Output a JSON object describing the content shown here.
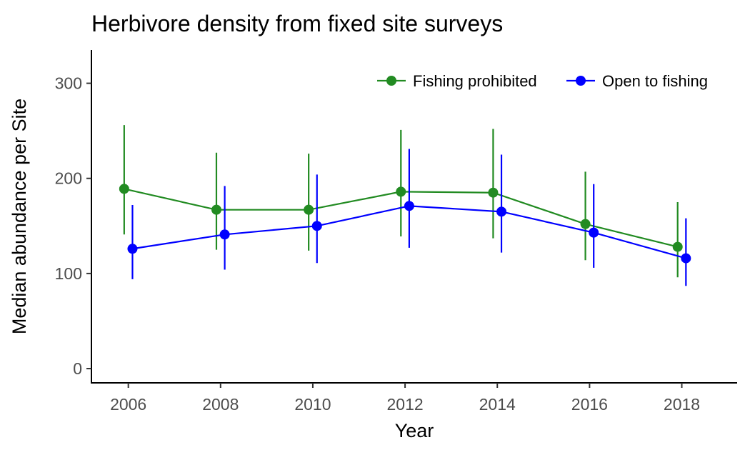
{
  "chart_data": {
    "type": "line",
    "title": "Herbivore density from fixed site surveys",
    "xlabel": "Year",
    "ylabel": "Median abundance per Site",
    "x": [
      2006,
      2008,
      2010,
      2012,
      2014,
      2016,
      2018
    ],
    "xlim": [
      2005.2,
      2019.2
    ],
    "ylim": [
      -15,
      335
    ],
    "yticks": [
      0,
      100,
      200,
      300
    ],
    "xticks": [
      2006,
      2008,
      2010,
      2012,
      2014,
      2016,
      2018
    ],
    "grid": false,
    "legend_position": "top-right",
    "series": [
      {
        "name": "Fishing prohibited",
        "color": "#228B22",
        "values": [
          189,
          167,
          167,
          186,
          185,
          152,
          128
        ],
        "lower": [
          141,
          125,
          124,
          139,
          137,
          114,
          96
        ],
        "upper": [
          256,
          227,
          226,
          251,
          252,
          207,
          175
        ]
      },
      {
        "name": "Open to fishing",
        "color": "#0000FF",
        "values": [
          126,
          141,
          150,
          171,
          165,
          143,
          116
        ],
        "lower": [
          94,
          104,
          111,
          127,
          122,
          106,
          87
        ],
        "upper": [
          172,
          192,
          204,
          231,
          225,
          194,
          158
        ]
      }
    ]
  }
}
